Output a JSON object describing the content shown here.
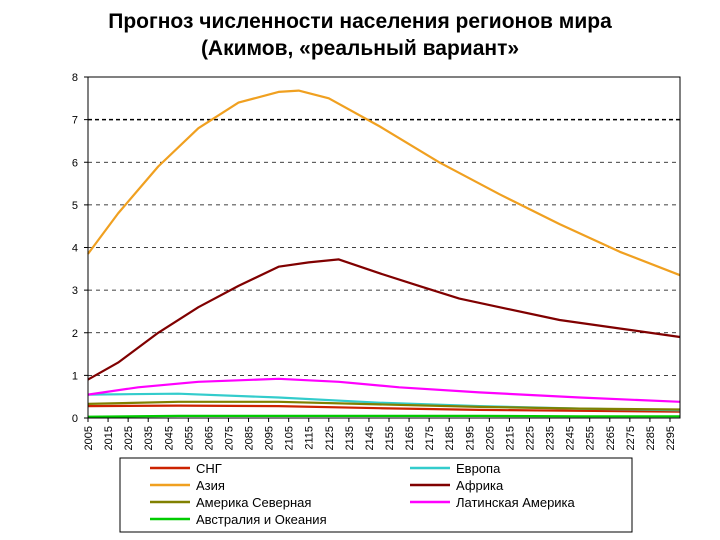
{
  "chart_data": {
    "type": "line",
    "title": [
      "Прогноз численности населения регионов мира",
      "(Акимов, «реальный вариант»"
    ],
    "xlabel": "",
    "ylabel": "",
    "x_ticks": [
      2005,
      2015,
      2025,
      2035,
      2045,
      2055,
      2065,
      2075,
      2085,
      2095,
      2105,
      2115,
      2125,
      2135,
      2145,
      2155,
      2165,
      2175,
      2185,
      2195,
      2205,
      2215,
      2225,
      2235,
      2245,
      2255,
      2265,
      2275,
      2285,
      2295
    ],
    "xlim": [
      2005,
      2300
    ],
    "ylim": [
      0,
      8
    ],
    "y_ticks": [
      0,
      1,
      2,
      3,
      4,
      5,
      6,
      7,
      8
    ],
    "grid": "horizontal dashed",
    "reference_line": 7,
    "legend_position": "bottom",
    "series": [
      {
        "name": "СНГ",
        "color": "#cc2200",
        "points": [
          [
            2005,
            0.28
          ],
          [
            2050,
            0.29
          ],
          [
            2100,
            0.28
          ],
          [
            2150,
            0.23
          ],
          [
            2200,
            0.19
          ],
          [
            2250,
            0.17
          ],
          [
            2300,
            0.15
          ]
        ]
      },
      {
        "name": "Европа",
        "color": "#33cccc",
        "points": [
          [
            2005,
            0.55
          ],
          [
            2050,
            0.57
          ],
          [
            2100,
            0.48
          ],
          [
            2150,
            0.36
          ],
          [
            2200,
            0.28
          ],
          [
            2250,
            0.22
          ],
          [
            2300,
            0.18
          ]
        ]
      },
      {
        "name": "Азия",
        "color": "#f0a020",
        "points": [
          [
            2005,
            3.85
          ],
          [
            2020,
            4.8
          ],
          [
            2040,
            5.9
          ],
          [
            2060,
            6.8
          ],
          [
            2080,
            7.4
          ],
          [
            2100,
            7.65
          ],
          [
            2110,
            7.68
          ],
          [
            2125,
            7.5
          ],
          [
            2150,
            6.85
          ],
          [
            2180,
            6.0
          ],
          [
            2210,
            5.25
          ],
          [
            2240,
            4.55
          ],
          [
            2270,
            3.9
          ],
          [
            2300,
            3.35
          ]
        ]
      },
      {
        "name": "Африка",
        "color": "#800000",
        "points": [
          [
            2005,
            0.9
          ],
          [
            2020,
            1.3
          ],
          [
            2040,
            2.0
          ],
          [
            2060,
            2.6
          ],
          [
            2080,
            3.1
          ],
          [
            2100,
            3.55
          ],
          [
            2115,
            3.65
          ],
          [
            2130,
            3.72
          ],
          [
            2150,
            3.4
          ],
          [
            2170,
            3.1
          ],
          [
            2190,
            2.8
          ],
          [
            2210,
            2.6
          ],
          [
            2240,
            2.3
          ],
          [
            2270,
            2.1
          ],
          [
            2300,
            1.9
          ]
        ]
      },
      {
        "name": "Америка Северная",
        "color": "#808000",
        "points": [
          [
            2005,
            0.33
          ],
          [
            2050,
            0.38
          ],
          [
            2100,
            0.38
          ],
          [
            2150,
            0.32
          ],
          [
            2200,
            0.26
          ],
          [
            2250,
            0.22
          ],
          [
            2300,
            0.2
          ]
        ]
      },
      {
        "name": "Латинская Америка",
        "color": "#ff00ff",
        "points": [
          [
            2005,
            0.55
          ],
          [
            2030,
            0.72
          ],
          [
            2060,
            0.85
          ],
          [
            2100,
            0.92
          ],
          [
            2130,
            0.85
          ],
          [
            2160,
            0.72
          ],
          [
            2200,
            0.6
          ],
          [
            2250,
            0.48
          ],
          [
            2300,
            0.38
          ]
        ]
      },
      {
        "name": "Австралия и Океания",
        "color": "#00cc00",
        "points": [
          [
            2005,
            0.03
          ],
          [
            2050,
            0.05
          ],
          [
            2100,
            0.05
          ],
          [
            2150,
            0.05
          ],
          [
            2200,
            0.05
          ],
          [
            2250,
            0.04
          ],
          [
            2300,
            0.04
          ]
        ]
      }
    ]
  }
}
